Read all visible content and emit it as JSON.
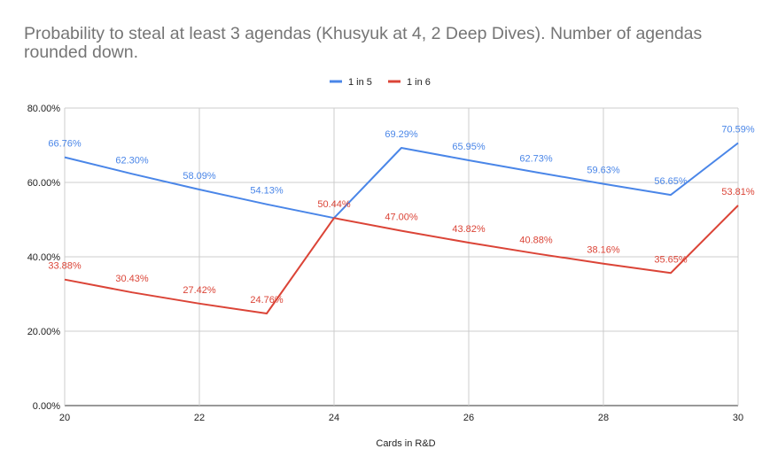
{
  "chart_data": {
    "type": "line",
    "title": "Probability to steal at least 3 agendas (Khusyuk at 4, 2 Deep Dives). Number of agendas rounded down.",
    "xlabel": "Cards in R&D",
    "ylabel": "",
    "xlim": [
      20,
      30
    ],
    "ylim": [
      0,
      80
    ],
    "x_ticks": [
      "20",
      "22",
      "24",
      "26",
      "28",
      "30"
    ],
    "y_ticks": [
      "0.00%",
      "20.00%",
      "40.00%",
      "60.00%",
      "80.00%"
    ],
    "grid": true,
    "legend_position": "top-center",
    "series": [
      {
        "name": "1 in 5",
        "color": "#4a86e8",
        "x": [
          20,
          21,
          22,
          23,
          24,
          25,
          26,
          27,
          28,
          29,
          30
        ],
        "values": [
          66.76,
          62.3,
          58.09,
          54.13,
          50.44,
          69.29,
          65.95,
          62.73,
          59.63,
          56.65,
          70.59
        ],
        "labels": [
          "66.76%",
          "62.30%",
          "58.09%",
          "54.13%",
          "",
          "69.29%",
          "65.95%",
          "62.73%",
          "59.63%",
          "56.65%",
          "70.59%"
        ]
      },
      {
        "name": "1 in 6",
        "color": "#db4437",
        "x": [
          20,
          21,
          22,
          23,
          24,
          25,
          26,
          27,
          28,
          29,
          30
        ],
        "values": [
          33.88,
          30.43,
          27.42,
          24.76,
          50.44,
          47.0,
          43.82,
          40.88,
          38.16,
          35.65,
          53.81
        ],
        "labels": [
          "33.88%",
          "30.43%",
          "27.42%",
          "24.76%",
          "50.44%",
          "47.00%",
          "43.82%",
          "40.88%",
          "38.16%",
          "35.65%",
          "53.81%"
        ]
      }
    ]
  }
}
